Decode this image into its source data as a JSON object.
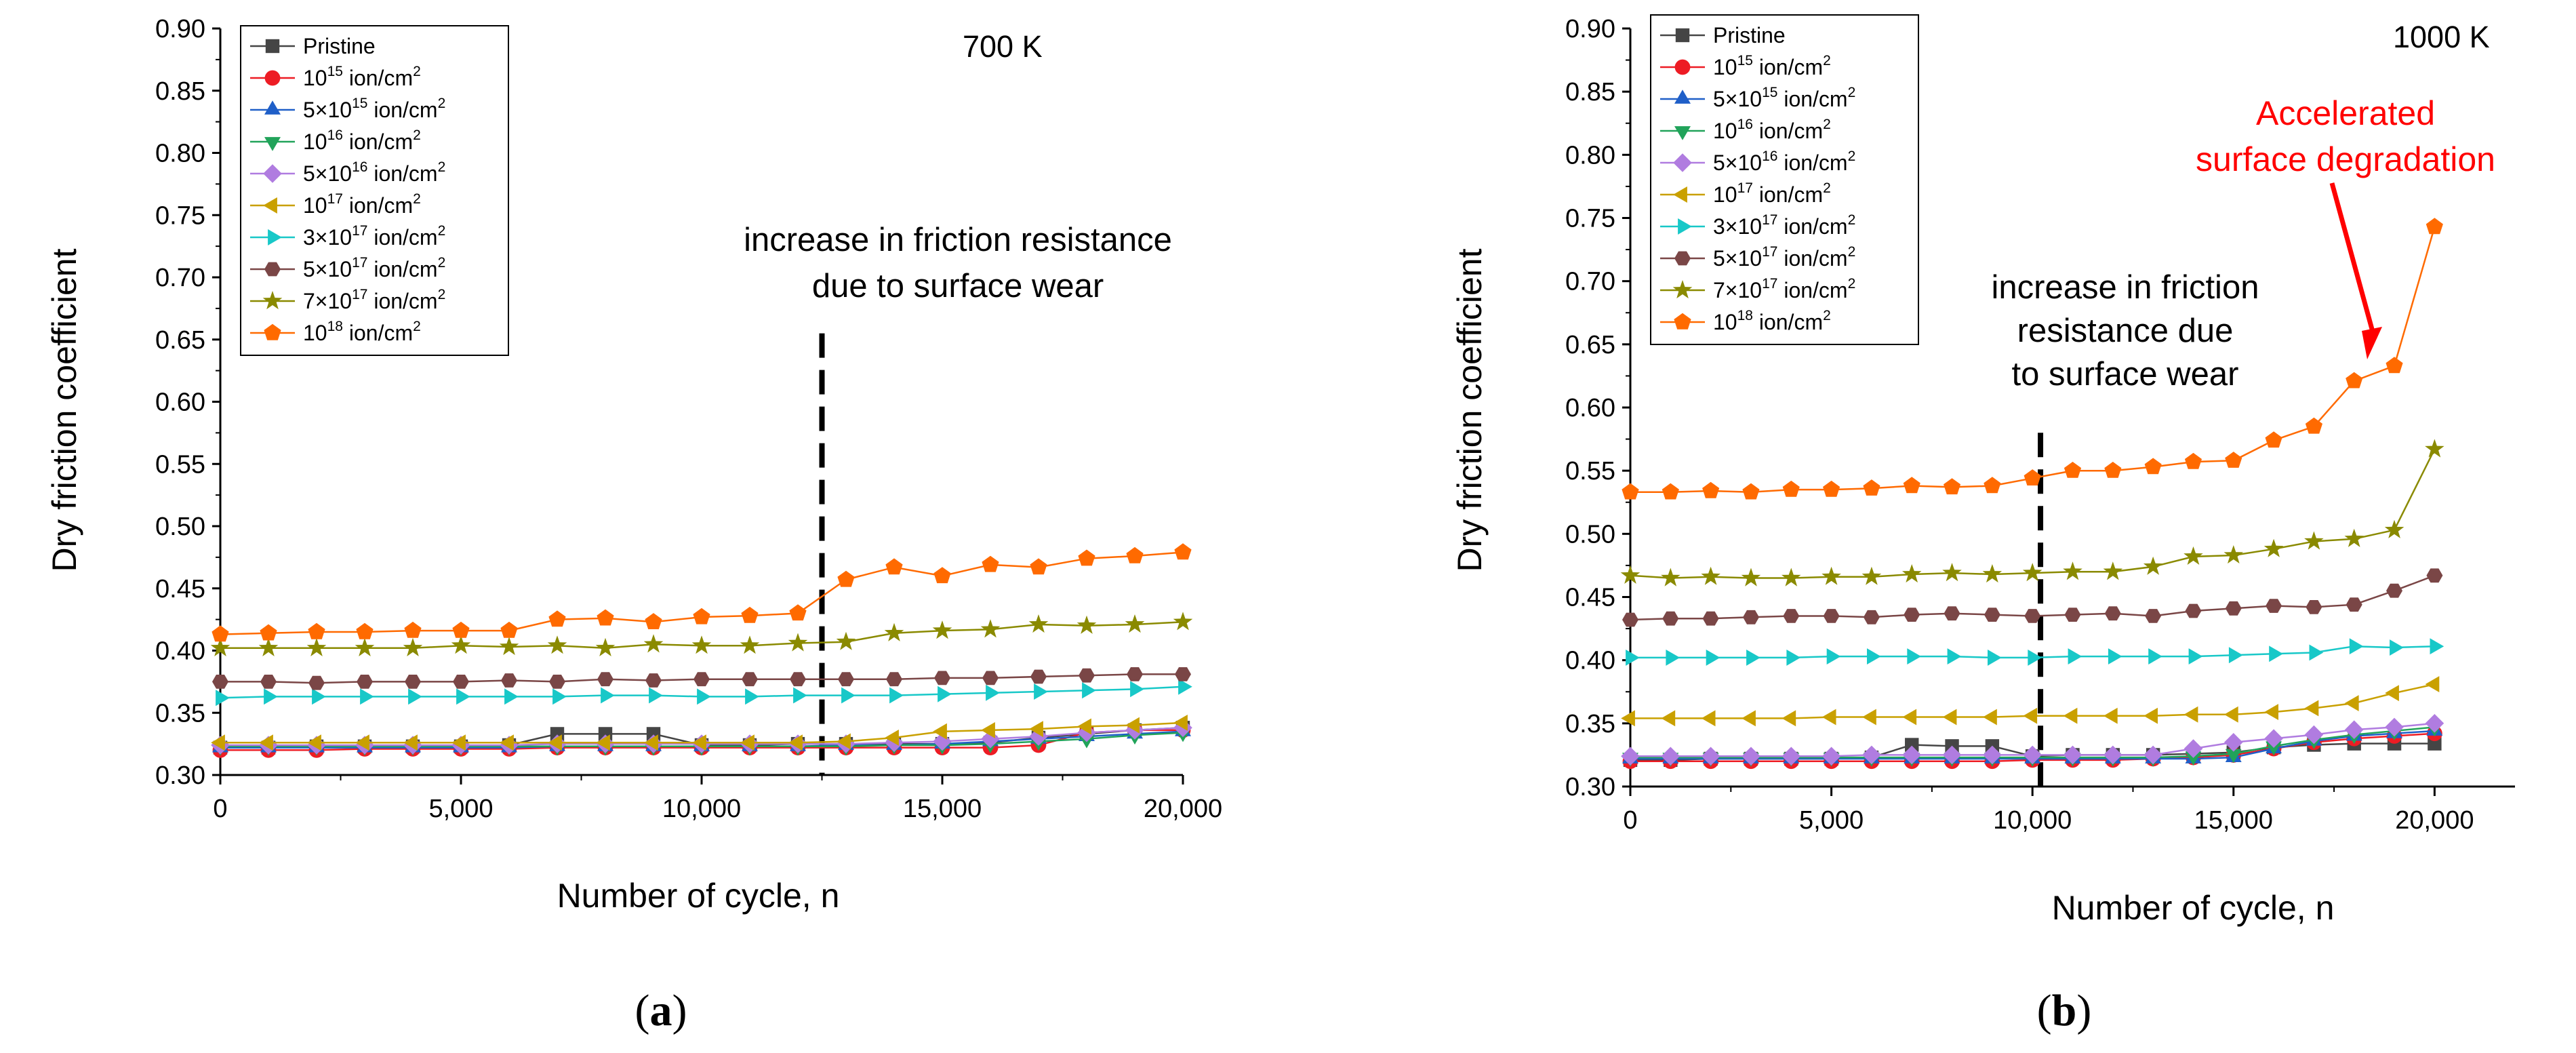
{
  "chart_data": [
    {
      "type": "line",
      "panel": "a",
      "caption_label": "a",
      "temperature_label": "700 K",
      "xlabel": "Number of cycle, n",
      "ylabel": "Dry friction coefficient",
      "xlim": [
        0,
        20000
      ],
      "ylim": [
        0.3,
        0.9
      ],
      "xticks": [
        "0",
        "5,000",
        "10,000",
        "15,000",
        "20,000"
      ],
      "yticks": [
        "0.30",
        "0.35",
        "0.40",
        "0.45",
        "0.50",
        "0.55",
        "0.60",
        "0.65",
        "0.70",
        "0.75",
        "0.80",
        "0.85",
        "0.90"
      ],
      "annotation_lines": [
        "increase in friction resistance",
        "due to surface wear"
      ],
      "divider_x": 12500,
      "divider_y_top": 0.655,
      "x": [
        0,
        1000,
        2000,
        3000,
        4000,
        5000,
        6000,
        7000,
        8000,
        9000,
        10000,
        11000,
        12000,
        13000,
        14000,
        15000,
        16000,
        17000,
        18000,
        19000,
        20000
      ],
      "series": [
        {
          "name": "Pristine",
          "values": [
            0.322,
            0.322,
            0.323,
            0.323,
            0.323,
            0.323,
            0.324,
            0.333,
            0.333,
            0.333,
            0.324,
            0.324,
            0.325,
            0.325,
            0.325,
            0.325,
            0.326,
            0.33,
            0.333,
            0.336,
            0.338
          ]
        },
        {
          "name": "10^15 ion/cm^2",
          "values": [
            0.32,
            0.32,
            0.32,
            0.321,
            0.321,
            0.321,
            0.321,
            0.322,
            0.322,
            0.322,
            0.322,
            0.322,
            0.322,
            0.322,
            0.322,
            0.322,
            0.322,
            0.324,
            0.334,
            0.336,
            0.336
          ]
        },
        {
          "name": "5×10^15 ion/cm^2",
          "values": [
            0.322,
            0.322,
            0.322,
            0.322,
            0.322,
            0.322,
            0.322,
            0.323,
            0.323,
            0.323,
            0.323,
            0.323,
            0.323,
            0.324,
            0.324,
            0.325,
            0.327,
            0.329,
            0.331,
            0.333,
            0.335
          ]
        },
        {
          "name": "10^16 ion/cm^2",
          "values": [
            0.323,
            0.323,
            0.323,
            0.323,
            0.323,
            0.323,
            0.323,
            0.323,
            0.323,
            0.323,
            0.323,
            0.323,
            0.323,
            0.323,
            0.324,
            0.324,
            0.325,
            0.327,
            0.329,
            0.332,
            0.334
          ]
        },
        {
          "name": "5×10^16 ion/cm^2",
          "values": [
            0.324,
            0.324,
            0.324,
            0.324,
            0.324,
            0.324,
            0.324,
            0.325,
            0.325,
            0.325,
            0.325,
            0.325,
            0.325,
            0.325,
            0.326,
            0.327,
            0.329,
            0.331,
            0.334,
            0.336,
            0.338
          ]
        },
        {
          "name": "10^17 ion/cm^2",
          "values": [
            0.326,
            0.326,
            0.326,
            0.326,
            0.326,
            0.326,
            0.326,
            0.326,
            0.326,
            0.326,
            0.326,
            0.326,
            0.326,
            0.327,
            0.33,
            0.335,
            0.336,
            0.337,
            0.339,
            0.34,
            0.342
          ]
        },
        {
          "name": "3×10^17 ion/cm^2",
          "values": [
            0.362,
            0.363,
            0.363,
            0.363,
            0.363,
            0.363,
            0.363,
            0.363,
            0.364,
            0.364,
            0.363,
            0.363,
            0.364,
            0.364,
            0.364,
            0.365,
            0.366,
            0.367,
            0.368,
            0.369,
            0.371
          ]
        },
        {
          "name": "5×10^17 ion/cm^2",
          "values": [
            0.375,
            0.375,
            0.374,
            0.375,
            0.375,
            0.375,
            0.376,
            0.375,
            0.377,
            0.376,
            0.377,
            0.377,
            0.377,
            0.377,
            0.377,
            0.378,
            0.378,
            0.379,
            0.38,
            0.381,
            0.381
          ]
        },
        {
          "name": "7×10^17 ion/cm^2",
          "values": [
            0.402,
            0.402,
            0.402,
            0.402,
            0.402,
            0.404,
            0.403,
            0.404,
            0.402,
            0.405,
            0.404,
            0.404,
            0.406,
            0.407,
            0.414,
            0.416,
            0.417,
            0.421,
            0.42,
            0.421,
            0.423
          ]
        },
        {
          "name": "10^18 ion/cm^2",
          "values": [
            0.413,
            0.414,
            0.415,
            0.415,
            0.416,
            0.416,
            0.416,
            0.425,
            0.426,
            0.423,
            0.427,
            0.428,
            0.43,
            0.457,
            0.467,
            0.46,
            0.469,
            0.467,
            0.474,
            0.476,
            0.479
          ]
        }
      ]
    },
    {
      "type": "line",
      "panel": "b",
      "caption_label": "b",
      "temperature_label": "1000 K",
      "xlabel": "Number of cycle, n",
      "ylabel": "Dry friction coefficient",
      "xlim": [
        0,
        22000
      ],
      "ylim": [
        0.3,
        0.9
      ],
      "xticks": [
        "0",
        "5,000",
        "10,000",
        "15,000",
        "20,000"
      ],
      "yticks": [
        "0.30",
        "0.35",
        "0.40",
        "0.45",
        "0.50",
        "0.55",
        "0.60",
        "0.65",
        "0.70",
        "0.75",
        "0.80",
        "0.85",
        "0.90"
      ],
      "annotation_lines": [
        "increase in friction",
        "resistance due",
        "to surface wear"
      ],
      "red_annotation_lines": [
        "Accelerated",
        "surface degradation"
      ],
      "divider_x": 10200,
      "divider_y_top": 0.58,
      "x": [
        0,
        1000,
        2000,
        3000,
        4000,
        5000,
        6000,
        7000,
        8000,
        9000,
        10000,
        11000,
        12000,
        13000,
        14000,
        15000,
        16000,
        17000,
        18000,
        19000,
        20000
      ],
      "series": [
        {
          "name": "Pristine",
          "values": [
            0.321,
            0.321,
            0.322,
            0.322,
            0.322,
            0.322,
            0.323,
            0.333,
            0.332,
            0.332,
            0.324,
            0.325,
            0.325,
            0.325,
            0.326,
            0.327,
            0.331,
            0.333,
            0.334,
            0.334,
            0.334
          ]
        },
        {
          "name": "10^15 ion/cm^2",
          "values": [
            0.32,
            0.32,
            0.32,
            0.32,
            0.32,
            0.32,
            0.32,
            0.32,
            0.32,
            0.32,
            0.321,
            0.321,
            0.321,
            0.322,
            0.323,
            0.325,
            0.33,
            0.335,
            0.338,
            0.34,
            0.342
          ]
        },
        {
          "name": "5×10^15 ion/cm^2",
          "values": [
            0.322,
            0.322,
            0.322,
            0.322,
            0.322,
            0.322,
            0.322,
            0.322,
            0.322,
            0.322,
            0.322,
            0.322,
            0.322,
            0.322,
            0.322,
            0.323,
            0.33,
            0.336,
            0.34,
            0.342,
            0.344
          ]
        },
        {
          "name": "10^16 ion/cm^2",
          "values": [
            0.323,
            0.323,
            0.323,
            0.323,
            0.323,
            0.323,
            0.323,
            0.323,
            0.323,
            0.323,
            0.323,
            0.323,
            0.323,
            0.323,
            0.324,
            0.326,
            0.332,
            0.337,
            0.341,
            0.344,
            0.347
          ]
        },
        {
          "name": "5×10^16 ion/cm^2",
          "values": [
            0.324,
            0.324,
            0.324,
            0.324,
            0.324,
            0.324,
            0.325,
            0.325,
            0.325,
            0.325,
            0.325,
            0.325,
            0.325,
            0.325,
            0.33,
            0.335,
            0.338,
            0.341,
            0.345,
            0.347,
            0.35
          ]
        },
        {
          "name": "10^17 ion/cm^2",
          "values": [
            0.354,
            0.354,
            0.354,
            0.354,
            0.354,
            0.355,
            0.355,
            0.355,
            0.355,
            0.355,
            0.356,
            0.356,
            0.356,
            0.356,
            0.357,
            0.357,
            0.359,
            0.362,
            0.366,
            0.374,
            0.381
          ]
        },
        {
          "name": "3×10^17 ion/cm^2",
          "values": [
            0.402,
            0.402,
            0.402,
            0.402,
            0.402,
            0.403,
            0.403,
            0.403,
            0.403,
            0.402,
            0.402,
            0.403,
            0.403,
            0.403,
            0.403,
            0.404,
            0.405,
            0.406,
            0.411,
            0.41,
            0.411
          ]
        },
        {
          "name": "5×10^17 ion/cm^2",
          "values": [
            0.432,
            0.433,
            0.433,
            0.434,
            0.435,
            0.435,
            0.434,
            0.436,
            0.437,
            0.436,
            0.435,
            0.436,
            0.437,
            0.435,
            0.439,
            0.441,
            0.443,
            0.442,
            0.444,
            0.455,
            0.467
          ]
        },
        {
          "name": "7×10^17 ion/cm^2",
          "values": [
            0.467,
            0.465,
            0.466,
            0.465,
            0.465,
            0.466,
            0.466,
            0.468,
            0.469,
            0.468,
            0.469,
            0.47,
            0.47,
            0.474,
            0.482,
            0.483,
            0.488,
            0.494,
            0.496,
            0.503,
            0.567
          ]
        },
        {
          "name": "10^18 ion/cm^2",
          "values": [
            0.533,
            0.533,
            0.534,
            0.533,
            0.535,
            0.535,
            0.536,
            0.538,
            0.537,
            0.538,
            0.544,
            0.55,
            0.55,
            0.553,
            0.557,
            0.558,
            0.574,
            0.585,
            0.621,
            0.633,
            0.743
          ]
        }
      ]
    }
  ],
  "legend": [
    {
      "base": "Pristine",
      "sup": "",
      "suffix": ""
    },
    {
      "base": "10",
      "sup": "15",
      "suffix": " ion/cm",
      "sup2": "2"
    },
    {
      "base": "5×10",
      "sup": "15",
      "suffix": " ion/cm",
      "sup2": "2"
    },
    {
      "base": "10",
      "sup": "16",
      "suffix": " ion/cm",
      "sup2": "2"
    },
    {
      "base": "5×10",
      "sup": "16",
      "suffix": " ion/cm",
      "sup2": "2"
    },
    {
      "base": "10",
      "sup": "17",
      "suffix": " ion/cm",
      "sup2": "2"
    },
    {
      "base": "3×10",
      "sup": "17",
      "suffix": " ion/cm",
      "sup2": "2"
    },
    {
      "base": "5×10",
      "sup": "17",
      "suffix": " ion/cm",
      "sup2": "2"
    },
    {
      "base": "7×10",
      "sup": "17",
      "suffix": " ion/cm",
      "sup2": "2"
    },
    {
      "base": "10",
      "sup": "18",
      "suffix": " ion/cm",
      "sup2": "2"
    }
  ],
  "styles": [
    {
      "color": "#454545",
      "marker": "square"
    },
    {
      "color": "#ed1c24",
      "marker": "circle"
    },
    {
      "color": "#1f5fc8",
      "marker": "triangle-up"
    },
    {
      "color": "#21a35a",
      "marker": "triangle-down"
    },
    {
      "color": "#b07ce0",
      "marker": "diamond"
    },
    {
      "color": "#c9a000",
      "marker": "triangle-left"
    },
    {
      "color": "#18c8c8",
      "marker": "triangle-right"
    },
    {
      "color": "#7a4646",
      "marker": "hexagon"
    },
    {
      "color": "#8a8a00",
      "marker": "star"
    },
    {
      "color": "#ff6a00",
      "marker": "pentagon"
    }
  ]
}
